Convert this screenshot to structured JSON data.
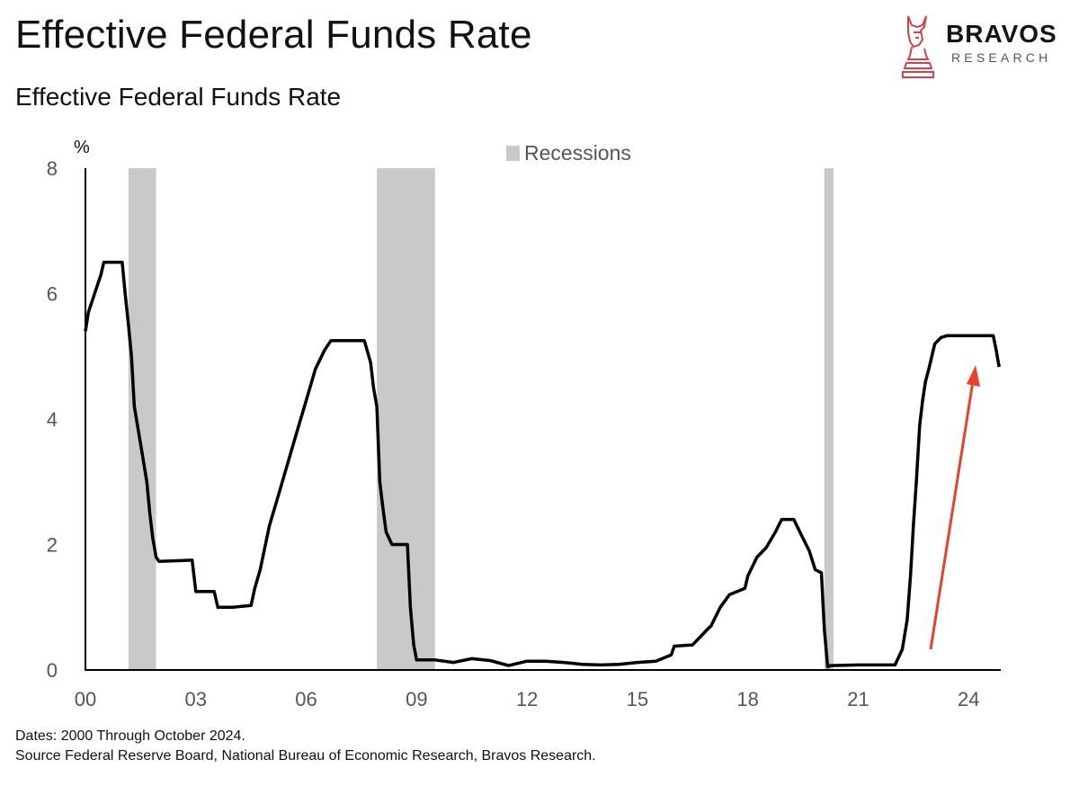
{
  "header": {
    "title": "Effective Federal Funds Rate",
    "subtitle": "Effective Federal Funds Rate"
  },
  "brand": {
    "name": "BRAVOS",
    "tagline": "RESEARCH",
    "icon": "bull-chess-knight-icon",
    "accent_color": "#d6404a"
  },
  "footer": {
    "line1": "Dates: 2000 Through October 2024.",
    "line2": "Source Federal Reserve Board, National Bureau of Economic Research, Bravos Research."
  },
  "chart_data": {
    "type": "line",
    "title": "Effective Federal Funds Rate",
    "ylabel": "%",
    "xlabel": "",
    "xlim": [
      2000,
      2024.85
    ],
    "ylim": [
      0,
      8
    ],
    "y_ticks": [
      "0",
      "2",
      "4",
      "6",
      "8"
    ],
    "y_tick_values": [
      0,
      2,
      4,
      6,
      8
    ],
    "x_ticks": [
      "00",
      "03",
      "06",
      "09",
      "12",
      "15",
      "18",
      "21",
      "24"
    ],
    "x_tick_values": [
      2000,
      2003,
      2006,
      2009,
      2012,
      2015,
      2018,
      2021,
      2024
    ],
    "grid": false,
    "legend": {
      "position": "top-center",
      "entries": [
        "Recessions"
      ]
    },
    "colors": {
      "line": "#000000",
      "recession": "#c9c9c9",
      "arrow": "#e8412c"
    },
    "recessions": [
      {
        "start": 2001.17,
        "end": 2001.92
      },
      {
        "start": 2007.92,
        "end": 2009.5
      },
      {
        "start": 2020.08,
        "end": 2020.33
      }
    ],
    "series": [
      {
        "name": "Effective Federal Funds Rate",
        "x": [
          2000.0,
          2000.08,
          2000.25,
          2000.42,
          2000.5,
          2001.0,
          2001.08,
          2001.17,
          2001.25,
          2001.33,
          2001.5,
          2001.67,
          2001.75,
          2001.83,
          2001.92,
          2002.0,
          2002.9,
          2003.0,
          2003.5,
          2003.6,
          2004.0,
          2004.5,
          2004.6,
          2004.75,
          2005.0,
          2005.25,
          2005.5,
          2005.75,
          2006.0,
          2006.25,
          2006.5,
          2006.67,
          2007.58,
          2007.75,
          2007.83,
          2007.92,
          2008.0,
          2008.08,
          2008.17,
          2008.33,
          2008.75,
          2008.83,
          2008.92,
          2009.0,
          2009.5,
          2010.0,
          2010.5,
          2011.0,
          2011.5,
          2012.0,
          2012.5,
          2013.0,
          2013.5,
          2014.0,
          2014.5,
          2015.0,
          2015.5,
          2015.92,
          2016.0,
          2016.5,
          2016.92,
          2017.0,
          2017.25,
          2017.5,
          2017.92,
          2018.0,
          2018.25,
          2018.5,
          2018.75,
          2018.92,
          2019.25,
          2019.5,
          2019.67,
          2019.83,
          2020.0,
          2020.08,
          2020.17,
          2020.25,
          2021.0,
          2021.5,
          2022.0,
          2022.2,
          2022.33,
          2022.42,
          2022.5,
          2022.58,
          2022.67,
          2022.75,
          2022.83,
          2022.92,
          2023.0,
          2023.08,
          2023.25,
          2023.42,
          2023.5,
          2023.58,
          2024.67,
          2024.75,
          2024.83
        ],
        "values": [
          5.4,
          5.7,
          6.0,
          6.3,
          6.5,
          6.5,
          6.0,
          5.5,
          5.0,
          4.2,
          3.6,
          3.0,
          2.5,
          2.1,
          1.8,
          1.73,
          1.75,
          1.25,
          1.25,
          1.0,
          1.0,
          1.03,
          1.3,
          1.6,
          2.3,
          2.8,
          3.3,
          3.8,
          4.3,
          4.8,
          5.1,
          5.25,
          5.25,
          4.9,
          4.5,
          4.2,
          3.0,
          2.6,
          2.2,
          2.0,
          2.0,
          1.0,
          0.4,
          0.16,
          0.16,
          0.12,
          0.18,
          0.15,
          0.07,
          0.14,
          0.14,
          0.12,
          0.09,
          0.08,
          0.09,
          0.12,
          0.14,
          0.24,
          0.38,
          0.4,
          0.66,
          0.7,
          1.0,
          1.2,
          1.3,
          1.5,
          1.8,
          1.95,
          2.2,
          2.4,
          2.4,
          2.1,
          1.9,
          1.6,
          1.55,
          0.65,
          0.05,
          0.07,
          0.08,
          0.08,
          0.08,
          0.33,
          0.8,
          1.5,
          2.3,
          3.0,
          3.9,
          4.3,
          4.6,
          4.8,
          5.0,
          5.2,
          5.3,
          5.33,
          5.33,
          5.33,
          5.33,
          5.1,
          4.83
        ]
      }
    ]
  }
}
